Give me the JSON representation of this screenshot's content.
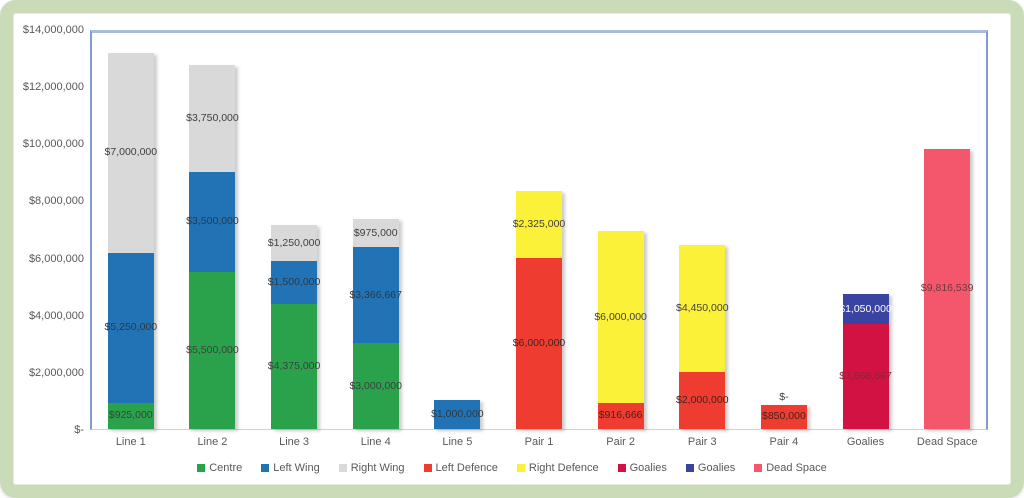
{
  "chart_data": {
    "type": "bar",
    "stacked": true,
    "title": "",
    "xlabel": "",
    "ylabel": "",
    "grid": false,
    "legend_position": "bottom",
    "background_color": "#ffffff",
    "frame_color": "#c9dcb7",
    "plot_border_color": "#7e9cce",
    "axis_line_color": "#d2d2d2",
    "y_axis": {
      "min": 0,
      "max": 14000000,
      "tick_step": 2000000,
      "ticks": [
        "$14,000,000",
        "$12,000,000",
        "$10,000,000",
        "$8,000,000",
        "$6,000,000",
        "$4,000,000",
        "$2,000,000",
        "$-"
      ]
    },
    "categories": [
      "Line 1",
      "Line 2",
      "Line 3",
      "Line 4",
      "Line 5",
      "Pair 1",
      "Pair 2",
      "Pair 3",
      "Pair 4",
      "Goalies",
      "Dead Space"
    ],
    "series": [
      {
        "name": "Centre",
        "color": "#2aa24c",
        "label_color": "#3f3f3f",
        "values": [
          925000,
          5500000,
          4375000,
          3000000,
          0,
          0,
          0,
          0,
          0,
          0,
          0
        ],
        "labels": [
          "$925,000",
          "$5,500,000",
          "$4,375,000",
          "$3,000,000",
          "",
          "",
          "",
          "",
          "",
          "",
          ""
        ]
      },
      {
        "name": "Left Wing",
        "color": "#2273b6",
        "label_color": "#2b3a47",
        "values": [
          5250000,
          3500000,
          1500000,
          3366667,
          1000000,
          0,
          0,
          0,
          0,
          0,
          0
        ],
        "labels": [
          "$5,250,000",
          "$3,500,000",
          "$1,500,000",
          "$3,366,667",
          "$1,000,000",
          "",
          "",
          "",
          "",
          "",
          ""
        ]
      },
      {
        "name": "Right Wing",
        "color": "#d9d9d9",
        "label_color": "#3f3f3f",
        "values": [
          7000000,
          3750000,
          1250000,
          975000,
          0,
          0,
          0,
          0,
          0,
          0,
          0
        ],
        "labels": [
          "$7,000,000",
          "$3,750,000",
          "$1,250,000",
          "$975,000",
          "",
          "",
          "",
          "",
          "",
          "",
          ""
        ]
      },
      {
        "name": "Left Defence",
        "color": "#ee3c30",
        "label_color": "#46231f",
        "values": [
          0,
          0,
          0,
          0,
          0,
          6000000,
          916666,
          2000000,
          850000,
          0,
          0
        ],
        "labels": [
          "",
          "",
          "",
          "",
          "",
          "$6,000,000",
          "$916,666",
          "$2,000,000",
          "$850,000",
          "",
          ""
        ]
      },
      {
        "name": "Right Defence",
        "color": "#fbf139",
        "label_color": "#3f3f3f",
        "values": [
          0,
          0,
          0,
          0,
          0,
          2325000,
          6000000,
          4450000,
          0,
          0,
          0
        ],
        "labels": [
          "",
          "",
          "",
          "",
          "",
          "$2,325,000",
          "$6,000,000",
          "$4,450,000",
          "$-",
          "",
          ""
        ]
      },
      {
        "name": "Goalies",
        "color": "#d11243",
        "label_color": "#8e2335",
        "values": [
          0,
          0,
          0,
          0,
          0,
          0,
          0,
          0,
          0,
          3666667,
          0
        ],
        "labels": [
          "",
          "",
          "",
          "",
          "",
          "",
          "",
          "",
          "",
          "$3,666,667",
          ""
        ]
      },
      {
        "name": "Goalies",
        "color": "#3943a1",
        "label_color": "#ffffff",
        "values": [
          0,
          0,
          0,
          0,
          0,
          0,
          0,
          0,
          0,
          1050000,
          0
        ],
        "labels": [
          "",
          "",
          "",
          "",
          "",
          "",
          "",
          "",
          "",
          "$1,050,000",
          ""
        ]
      },
      {
        "name": "Dead Space",
        "color": "#f4566c",
        "label_color": "#6e3a42",
        "values": [
          0,
          0,
          0,
          0,
          0,
          0,
          0,
          0,
          0,
          0,
          9816539
        ],
        "labels": [
          "",
          "",
          "",
          "",
          "",
          "",
          "",
          "",
          "",
          "",
          "$9,816,539"
        ]
      }
    ],
    "legend": [
      {
        "label": "Centre",
        "color": "#2aa24c"
      },
      {
        "label": "Left Wing",
        "color": "#2273b6"
      },
      {
        "label": "Right Wing",
        "color": "#d9d9d9"
      },
      {
        "label": "Left Defence",
        "color": "#ee3c30"
      },
      {
        "label": "Right Defence",
        "color": "#fbf139"
      },
      {
        "label": "Goalies",
        "color": "#d11243"
      },
      {
        "label": "Goalies",
        "color": "#3943a1"
      },
      {
        "label": "Dead Space",
        "color": "#f4566c"
      }
    ]
  }
}
